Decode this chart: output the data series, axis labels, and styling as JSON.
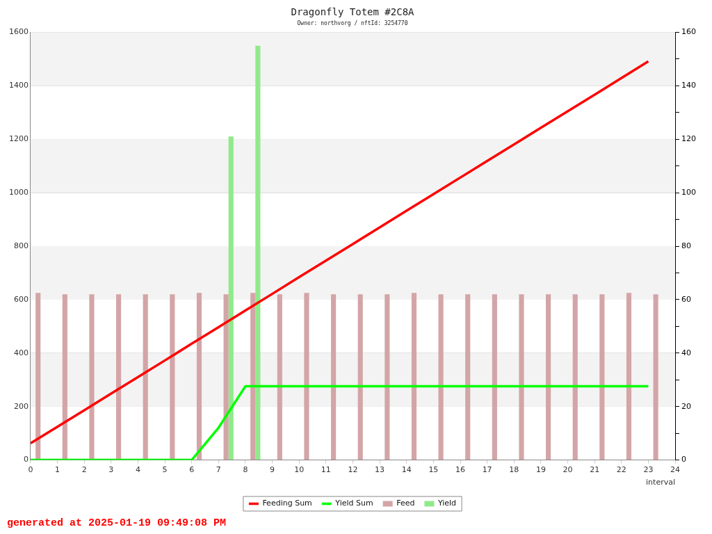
{
  "chart_data": {
    "type": "bar",
    "title": "Dragonfly Totem #2C8A",
    "subtitle": "Owner: northvorg / nftId: 3254770",
    "xlabel": "interval",
    "x": [
      0,
      1,
      2,
      3,
      4,
      5,
      6,
      7,
      8,
      9,
      10,
      11,
      12,
      13,
      14,
      15,
      16,
      17,
      18,
      19,
      20,
      21,
      22,
      23
    ],
    "series": [
      {
        "name": "Feeding Sum",
        "type": "line",
        "color": "#ff0000",
        "values": [
          62.5,
          124.5,
          186.5,
          248.5,
          310.5,
          372.5,
          435,
          497,
          559.5,
          621.5,
          684,
          746,
          808,
          870,
          932.5,
          994.5,
          1056.5,
          1118.5,
          1180.5,
          1242.5,
          1304.5,
          1366.5,
          1429,
          1491
        ]
      },
      {
        "name": "Yield Sum",
        "type": "line",
        "color": "#00ff00",
        "values": [
          0,
          0,
          0,
          0,
          0,
          0,
          0,
          121,
          276,
          276,
          276,
          276,
          276,
          276,
          276,
          276,
          276,
          276,
          276,
          276,
          276,
          276,
          276,
          276
        ]
      },
      {
        "name": "Feed",
        "axis": "y2",
        "color": "#d3a5a7",
        "values": [
          62.5,
          62,
          62,
          62,
          62,
          62,
          62.5,
          62,
          62.5,
          62,
          62.5,
          62,
          62,
          62,
          62.5,
          62,
          62,
          62,
          62,
          62,
          62,
          62,
          62.5,
          62
        ]
      },
      {
        "name": "Yield",
        "axis": "y2",
        "color": "#90ea8a",
        "values": [
          null,
          null,
          null,
          null,
          null,
          null,
          null,
          121,
          155,
          null,
          null,
          null,
          null,
          null,
          null,
          null,
          null,
          null,
          null,
          null,
          null,
          null,
          null,
          null
        ]
      }
    ],
    "xlim": [
      0,
      24
    ],
    "xticks": [
      0,
      1,
      2,
      3,
      4,
      5,
      6,
      7,
      8,
      9,
      10,
      11,
      12,
      13,
      14,
      15,
      16,
      17,
      18,
      19,
      20,
      21,
      22,
      23,
      24
    ],
    "ylim": [
      0,
      1600
    ],
    "yticks": [
      0,
      200,
      400,
      600,
      800,
      1000,
      1200,
      1400,
      1600
    ],
    "y2lim": [
      0,
      160
    ],
    "y2ticks": [
      0,
      {
        "value": 10,
        "label": null
      },
      20,
      {
        "value": 30,
        "label": null
      },
      40,
      {
        "value": 50,
        "label": null
      },
      60,
      {
        "value": 70,
        "label": null
      },
      80,
      {
        "value": 90,
        "label": null
      },
      100,
      {
        "value": 110,
        "label": null
      },
      120,
      {
        "value": 130,
        "label": null
      },
      140,
      {
        "value": 150,
        "label": null
      },
      160
    ],
    "grid": "y",
    "legend": "bottom",
    "marker": "none",
    "annotations": [
      "generated at 2025-01-19 09:49:08 PM"
    ]
  }
}
